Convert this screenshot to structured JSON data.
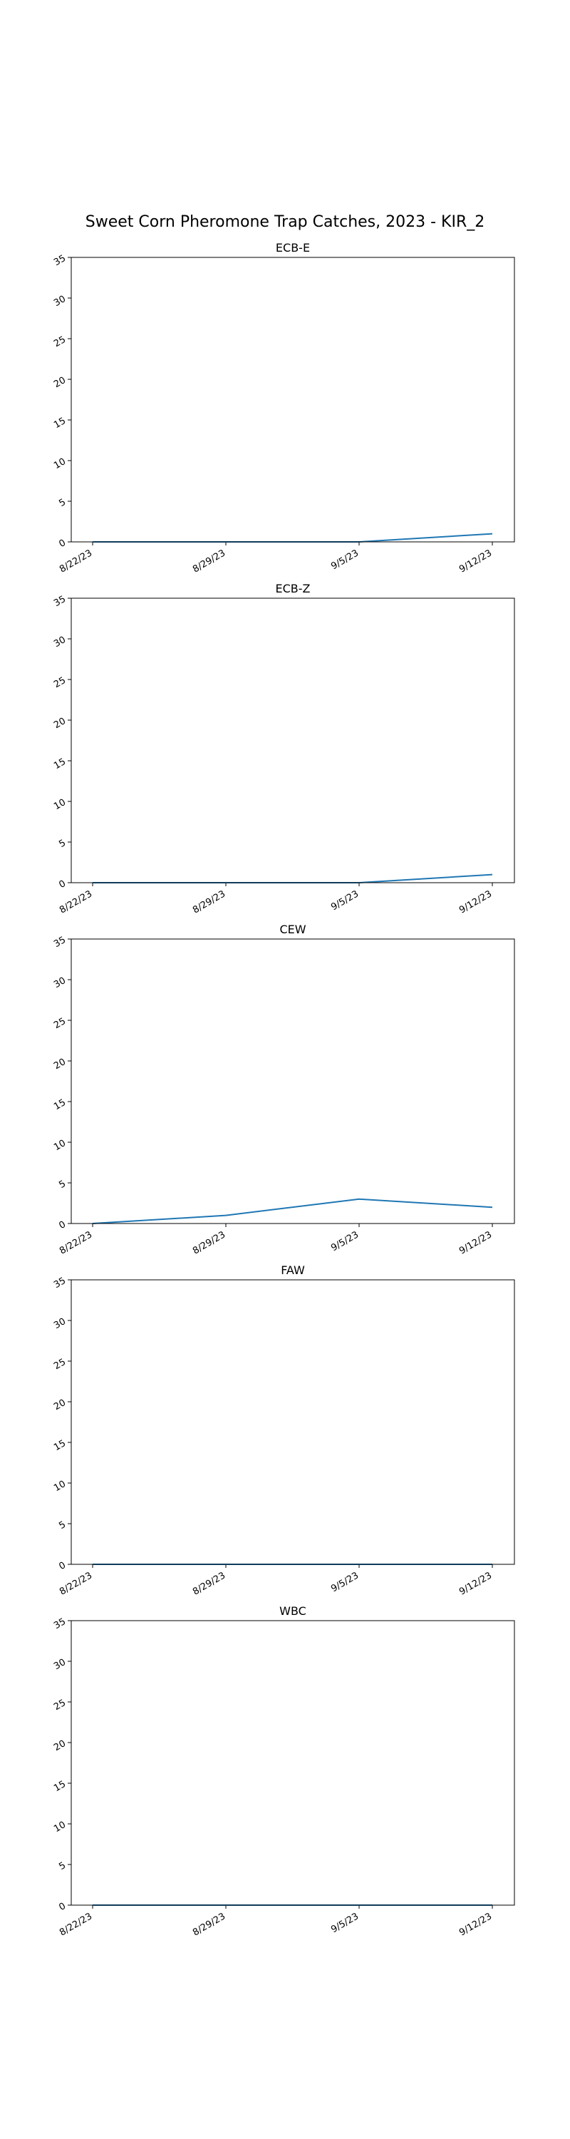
{
  "suptitle": "Sweet Corn Pheromone Trap Catches, 2023 - KIR_2",
  "chart_data": [
    {
      "type": "line",
      "title": "ECB-E",
      "categories": [
        "8/22/23",
        "8/29/23",
        "9/5/23",
        "9/12/23"
      ],
      "values": [
        0,
        0,
        0,
        1
      ],
      "ylim": [
        0,
        35
      ],
      "yticks": [
        0,
        5,
        10,
        15,
        20,
        25,
        30,
        35
      ],
      "color": "#1f77b4",
      "grid": false
    },
    {
      "type": "line",
      "title": "ECB-Z",
      "categories": [
        "8/22/23",
        "8/29/23",
        "9/5/23",
        "9/12/23"
      ],
      "values": [
        0,
        0,
        0,
        1
      ],
      "ylim": [
        0,
        35
      ],
      "yticks": [
        0,
        5,
        10,
        15,
        20,
        25,
        30,
        35
      ],
      "color": "#1f77b4",
      "grid": false
    },
    {
      "type": "line",
      "title": "CEW",
      "categories": [
        "8/22/23",
        "8/29/23",
        "9/5/23",
        "9/12/23"
      ],
      "values": [
        0,
        1,
        3,
        2
      ],
      "ylim": [
        0,
        35
      ],
      "yticks": [
        0,
        5,
        10,
        15,
        20,
        25,
        30,
        35
      ],
      "color": "#1f77b4",
      "grid": false
    },
    {
      "type": "line",
      "title": "FAW",
      "categories": [
        "8/22/23",
        "8/29/23",
        "9/5/23",
        "9/12/23"
      ],
      "values": [
        0,
        0,
        0,
        0
      ],
      "ylim": [
        0,
        35
      ],
      "yticks": [
        0,
        5,
        10,
        15,
        20,
        25,
        30,
        35
      ],
      "color": "#1f77b4",
      "grid": false
    },
    {
      "type": "line",
      "title": "WBC",
      "categories": [
        "8/22/23",
        "8/29/23",
        "9/5/23",
        "9/12/23"
      ],
      "values": [
        0,
        0,
        0,
        0
      ],
      "ylim": [
        0,
        35
      ],
      "yticks": [
        0,
        5,
        10,
        15,
        20,
        25,
        30,
        35
      ],
      "color": "#1f77b4",
      "grid": false
    }
  ]
}
